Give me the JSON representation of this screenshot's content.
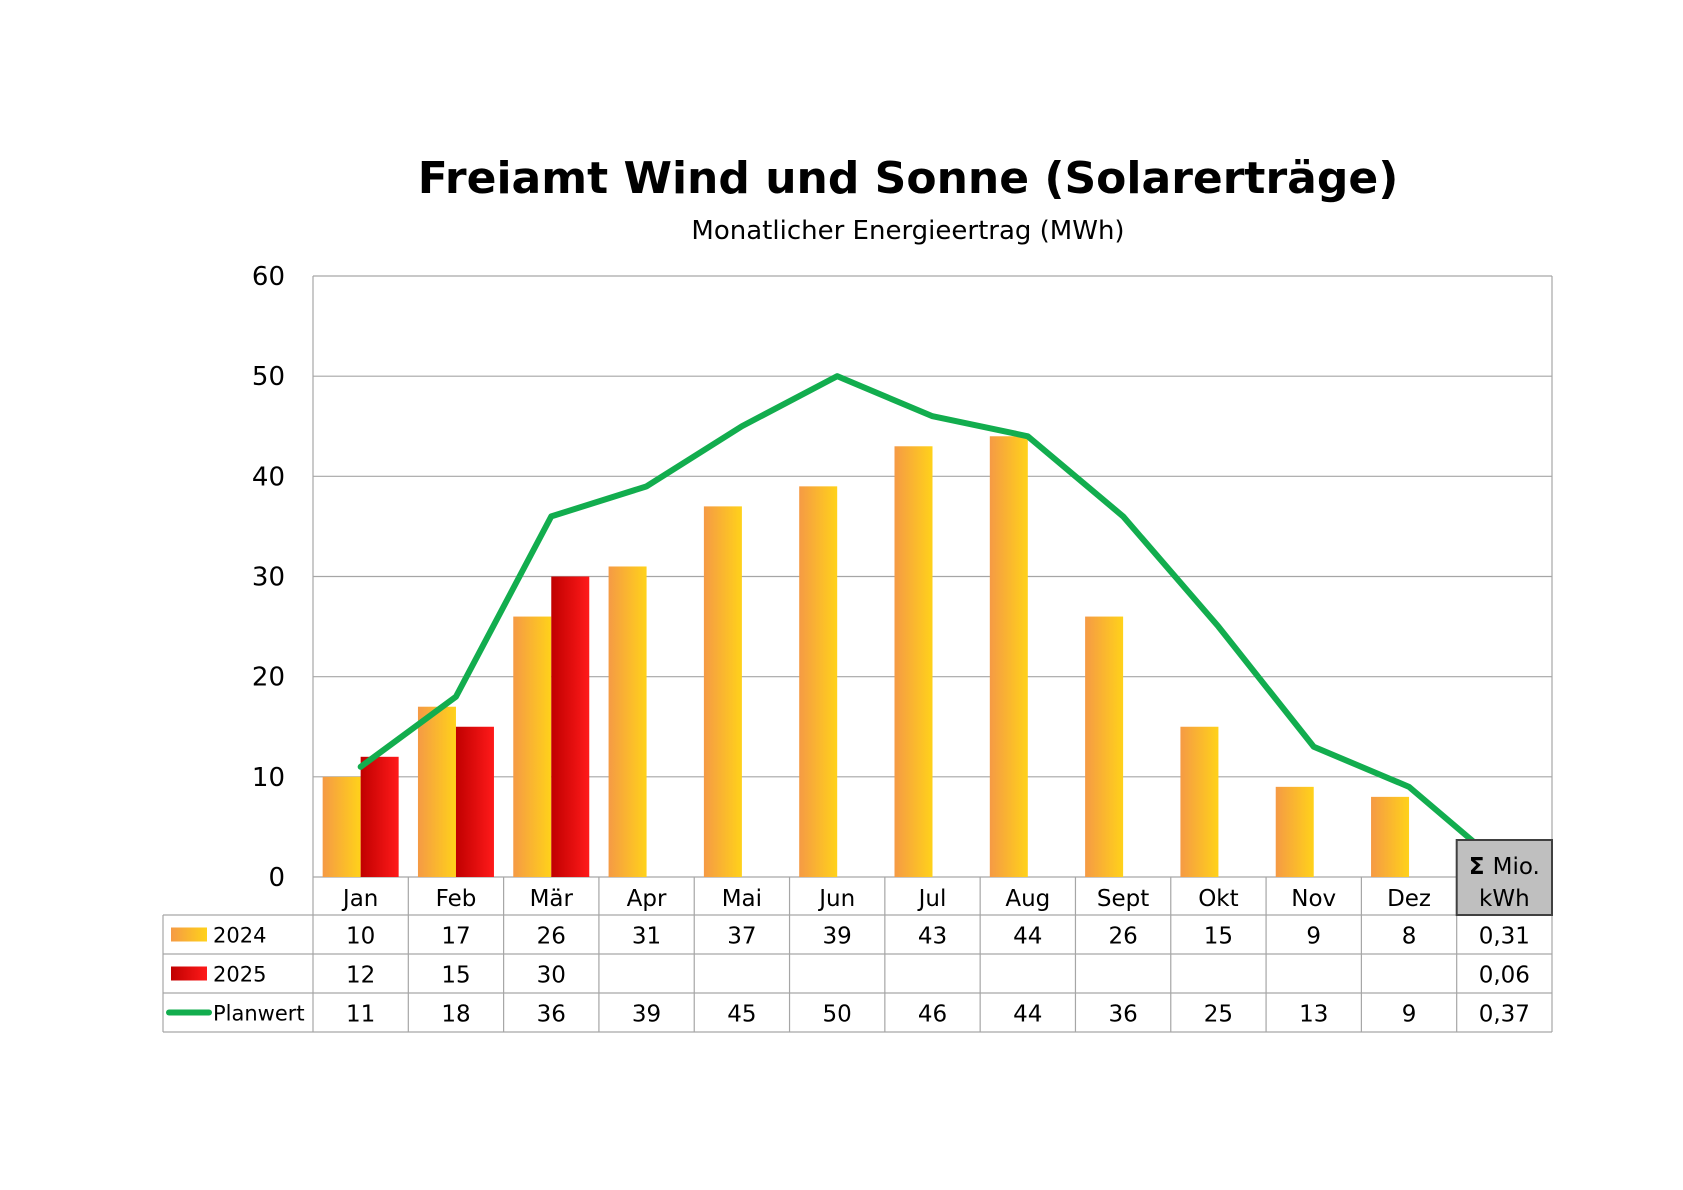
{
  "chart_data": {
    "type": "bar",
    "title": "Freiamt Wind und Sonne (Solarerträge)",
    "subtitle": "Monatlicher Energieertrag (MWh)",
    "categories": [
      "Jan",
      "Feb",
      "Mär",
      "Apr",
      "Mai",
      "Jun",
      "Jul",
      "Aug",
      "Sept",
      "Okt",
      "Nov",
      "Dez"
    ],
    "ylim": [
      0,
      60
    ],
    "yticks": [
      0,
      10,
      20,
      30,
      40,
      50,
      60
    ],
    "grid": true,
    "legend_placement": "data-table",
    "series": [
      {
        "name": "2024",
        "kind": "bar",
        "color_start": "#f59a45",
        "color_end": "#ffd21a",
        "values": [
          10,
          17,
          26,
          31,
          37,
          39,
          43,
          44,
          26,
          15,
          9,
          8
        ]
      },
      {
        "name": "2025",
        "kind": "bar",
        "color_start": "#c00000",
        "color_end": "#ff1a1a",
        "values": [
          12,
          15,
          30,
          null,
          null,
          null,
          null,
          null,
          null,
          null,
          null,
          null
        ]
      },
      {
        "name": "Planwert",
        "kind": "line",
        "color": "#12ad4e",
        "values": [
          11,
          18,
          36,
          39,
          45,
          50,
          46,
          44,
          36,
          25,
          13,
          9
        ]
      }
    ],
    "sum_column": {
      "symbol": "Σ",
      "header_line1": "Mio.",
      "header_line2": "kWh",
      "values": [
        "0,31",
        "0,06",
        "0,37"
      ]
    }
  }
}
